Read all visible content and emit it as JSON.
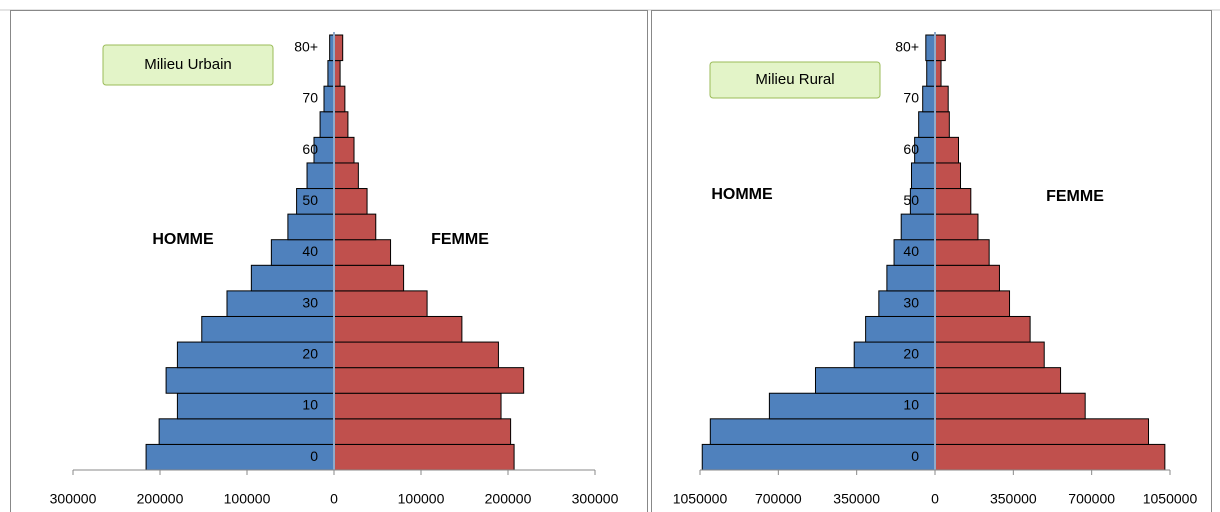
{
  "chart_data": [
    {
      "type": "bar",
      "orientation": "horizontal",
      "title": "Milieu Urbain",
      "categories": [
        "0",
        null,
        "10",
        null,
        "20",
        null,
        "30",
        null,
        "40",
        null,
        "50",
        null,
        "60",
        null,
        "70",
        null,
        "80+"
      ],
      "series": [
        {
          "name": "HOMME",
          "color": "#4f81bd",
          "values": [
            -216000,
            -201000,
            -180000,
            -193000,
            -180000,
            -152000,
            -123000,
            -95000,
            -72000,
            -53000,
            -43000,
            -31000,
            -23000,
            -16000,
            -11500,
            -7000,
            -5000
          ]
        },
        {
          "name": "FEMME",
          "color": "#c0504d",
          "values": [
            207000,
            203000,
            192000,
            218000,
            189000,
            147000,
            107000,
            80000,
            65000,
            48000,
            38000,
            28000,
            23000,
            16000,
            12500,
            7000,
            10000
          ]
        }
      ],
      "xlim": [
        -300000,
        300000
      ],
      "xticks": [
        {
          "value": -300000,
          "label": "300000"
        },
        {
          "value": -200000,
          "label": "200000"
        },
        {
          "value": -100000,
          "label": "100000"
        },
        0,
        100000,
        200000,
        300000
      ]
    },
    {
      "type": "bar",
      "orientation": "horizontal",
      "title": "Milieu Rural",
      "categories": [
        "0",
        null,
        "10",
        null,
        "20",
        null,
        "30",
        null,
        "40",
        null,
        "50",
        null,
        "60",
        null,
        "70",
        null,
        "80+"
      ],
      "series": [
        {
          "name": "HOMME",
          "color": "#4f81bd",
          "values": [
            -1040000,
            -1004000,
            -740000,
            -534000,
            -361000,
            -310000,
            -251000,
            -215000,
            -183000,
            -151000,
            -110000,
            -105000,
            -91000,
            -73000,
            -55000,
            -37000,
            -41000
          ]
        },
        {
          "name": "FEMME",
          "color": "#c0504d",
          "values": [
            1027000,
            954000,
            671000,
            561000,
            488000,
            425000,
            333000,
            288000,
            242000,
            192000,
            160000,
            114000,
            105000,
            64000,
            59000,
            27000,
            46000
          ]
        }
      ],
      "xlim": [
        -1050000,
        1050000
      ],
      "xticks": [
        {
          "value": -1050000,
          "label": "1050000"
        },
        {
          "value": -700000,
          "label": "700000"
        },
        {
          "value": -350000,
          "label": "350000"
        },
        0,
        350000,
        700000,
        1050000
      ]
    }
  ]
}
